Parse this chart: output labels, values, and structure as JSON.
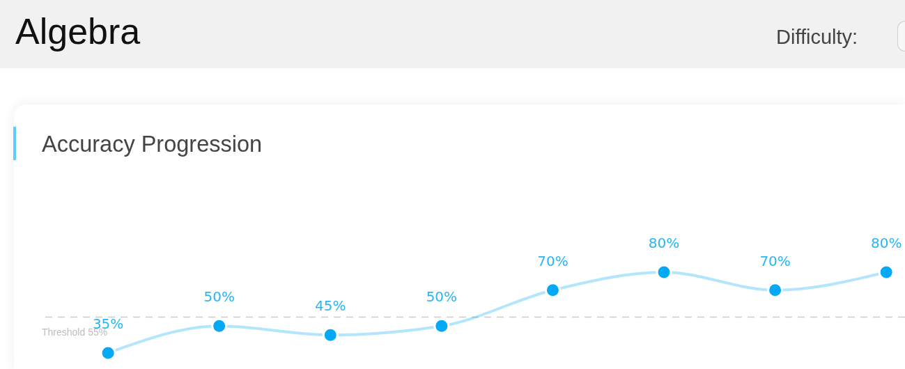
{
  "chart_data": {
    "type": "line",
    "title": "Accuracy Progression",
    "annotations": [
      "Algebra",
      "Difficulty:"
    ],
    "categories": [
      null,
      null,
      null,
      null,
      null,
      null,
      null,
      null
    ],
    "series": [
      {
        "color": "#03a9f4",
        "values": [
          35,
          50,
          45,
          50,
          70,
          80,
          70,
          80
        ],
        "value_labels": [
          "35%",
          "50%",
          "45%",
          "50%",
          "70%",
          "80%",
          "70%",
          "80%"
        ]
      }
    ],
    "ref_lines": [
      {
        "axis": "y",
        "value": 55,
        "label": "Threshold 55%",
        "color": "#cccccc",
        "line_style": "dashed"
      }
    ],
    "marker": "circle",
    "grid": false,
    "tick_labels": false
  }
}
